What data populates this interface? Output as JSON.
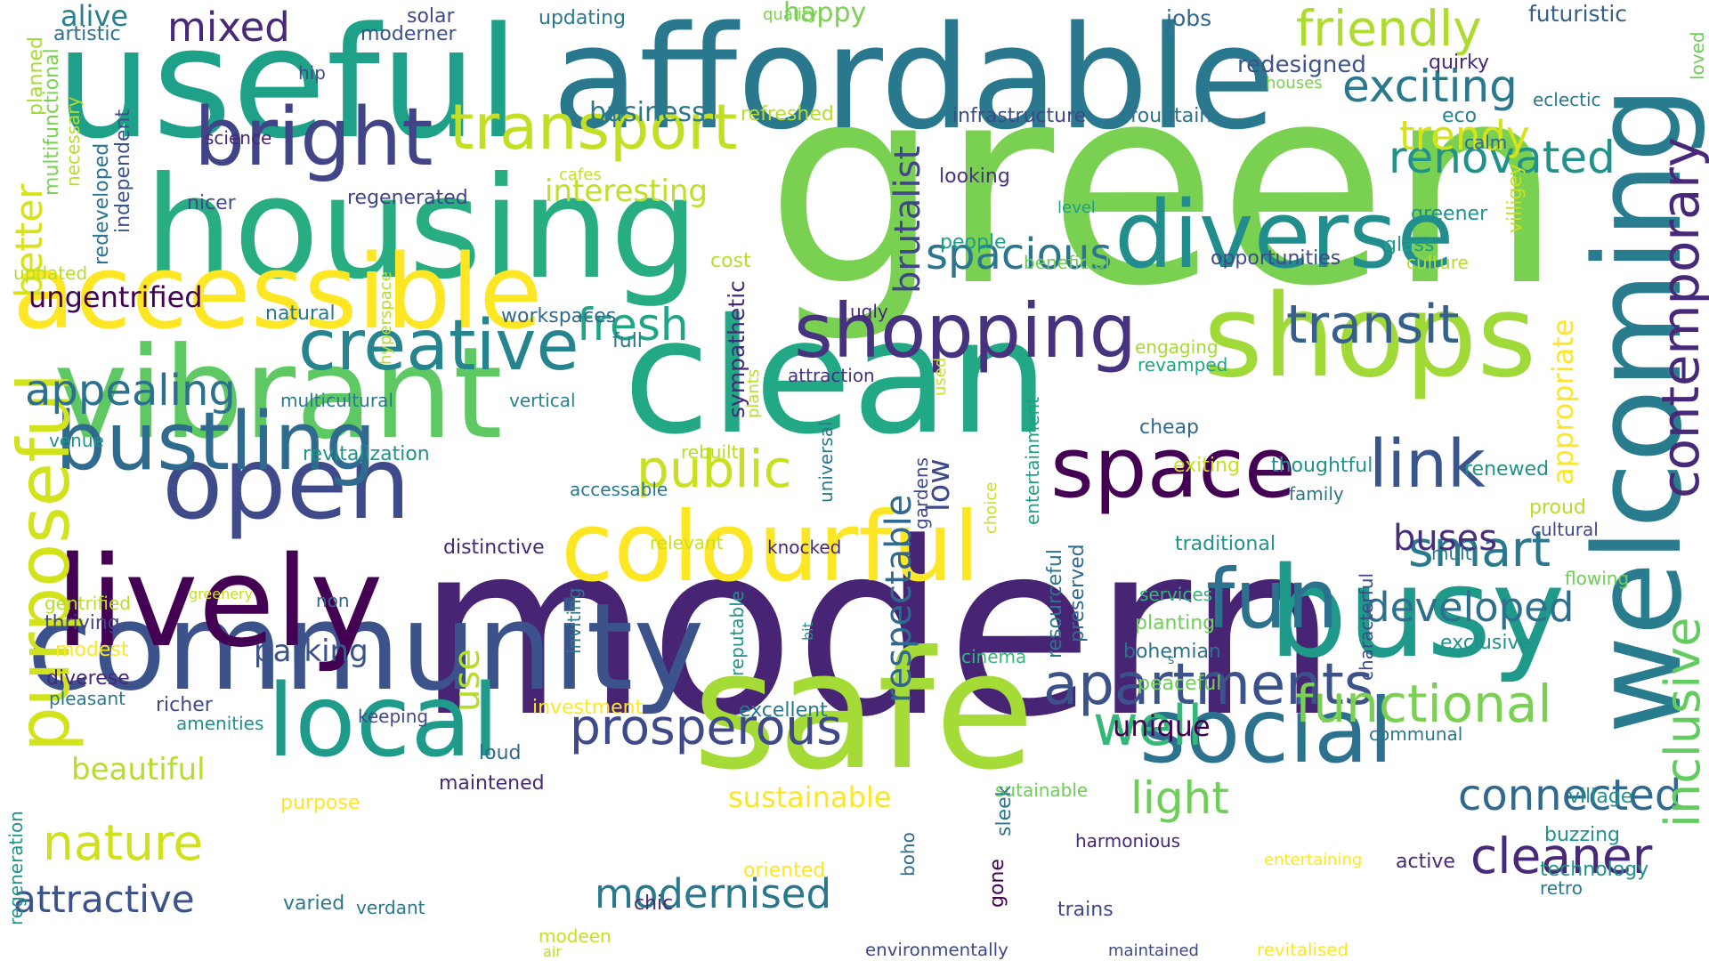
{
  "background": "#ffffff",
  "palette": [
    "#440154",
    "#482878",
    "#3e4989",
    "#31688e",
    "#26828e",
    "#1f9e89",
    "#35b779",
    "#6ece58",
    "#b5de2b",
    "#fde725"
  ],
  "words": [
    {
      "text": "modern",
      "color": "#482475",
      "orientation": "horizontal"
    },
    {
      "text": "green",
      "color": "#7ad151",
      "orientation": "horizontal"
    },
    {
      "text": "clean",
      "color": "#22a884",
      "orientation": "horizontal"
    },
    {
      "text": "safe",
      "color": "#a5db36",
      "orientation": "horizontal"
    },
    {
      "text": "welcoming",
      "color": "#287c8e",
      "orientation": "vertical"
    },
    {
      "text": "useful",
      "color": "#1fa088",
      "orientation": "horizontal"
    },
    {
      "text": "affordable",
      "color": "#2a788e",
      "orientation": "horizontal"
    },
    {
      "text": "housing",
      "color": "#27ad81",
      "orientation": "horizontal"
    },
    {
      "text": "vibrant",
      "color": "#5ec962",
      "orientation": "horizontal"
    },
    {
      "text": "community",
      "color": "#3b528b",
      "orientation": "horizontal"
    },
    {
      "text": "lively",
      "color": "#440154",
      "orientation": "horizontal"
    },
    {
      "text": "busy",
      "color": "#1f9a8a",
      "orientation": "horizontal"
    },
    {
      "text": "social",
      "color": "#2c728e",
      "orientation": "horizontal"
    },
    {
      "text": "shops",
      "color": "#a0da39",
      "orientation": "horizontal"
    },
    {
      "text": "open",
      "color": "#3e4a89",
      "orientation": "horizontal"
    },
    {
      "text": "accessible",
      "color": "#fde725",
      "orientation": "horizontal"
    },
    {
      "text": "local",
      "color": "#1e9b8a",
      "orientation": "horizontal"
    },
    {
      "text": "diverse",
      "color": "#228d8d",
      "orientation": "horizontal"
    },
    {
      "text": "bright",
      "color": "#414487",
      "orientation": "horizontal"
    },
    {
      "text": "space",
      "color": "#440154",
      "orientation": "horizontal"
    },
    {
      "text": "colourful",
      "color": "#fde725",
      "orientation": "horizontal"
    },
    {
      "text": "bustling",
      "color": "#2f6b8e",
      "orientation": "horizontal"
    },
    {
      "text": "shopping",
      "color": "#46327e",
      "orientation": "horizontal"
    },
    {
      "text": "transport",
      "color": "#c2df23",
      "orientation": "horizontal"
    },
    {
      "text": "creative",
      "color": "#25848e",
      "orientation": "horizontal"
    },
    {
      "text": "apartments",
      "color": "#3b528b",
      "orientation": "horizontal"
    },
    {
      "text": "friendly",
      "color": "#addc30",
      "orientation": "horizontal"
    },
    {
      "text": "fun",
      "color": "#2c728e",
      "orientation": "horizontal"
    },
    {
      "text": "link",
      "color": "#39568c",
      "orientation": "horizontal"
    },
    {
      "text": "transit",
      "color": "#355f8d",
      "orientation": "horizontal"
    },
    {
      "text": "prosperous",
      "color": "#3e4989",
      "orientation": "horizontal"
    },
    {
      "text": "functional",
      "color": "#7ad151",
      "orientation": "horizontal"
    },
    {
      "text": "purposeful",
      "color": "#d2e21b",
      "orientation": "vertical"
    },
    {
      "text": "contemporary",
      "color": "#482878",
      "orientation": "vertical"
    },
    {
      "text": "public",
      "color": "#c8e020",
      "orientation": "horizontal"
    },
    {
      "text": "well",
      "color": "#35b779",
      "orientation": "horizontal"
    },
    {
      "text": "cleaner",
      "color": "#482878",
      "orientation": "horizontal"
    },
    {
      "text": "exciting",
      "color": "#2a788e",
      "orientation": "horizontal"
    },
    {
      "text": "renovated",
      "color": "#21918c",
      "orientation": "horizontal"
    },
    {
      "text": "smart",
      "color": "#2a788e",
      "orientation": "horizontal"
    },
    {
      "text": "connected",
      "color": "#31688e",
      "orientation": "horizontal"
    },
    {
      "text": "nature",
      "color": "#d0e11c",
      "orientation": "horizontal"
    },
    {
      "text": "inclusive",
      "color": "#63cb5f",
      "orientation": "vertical"
    },
    {
      "text": "trendy",
      "color": "#d8e219",
      "orientation": "horizontal"
    },
    {
      "text": "fresh",
      "color": "#20a486",
      "orientation": "horizontal"
    },
    {
      "text": "spacious",
      "color": "#2b758e",
      "orientation": "horizontal"
    },
    {
      "text": "light",
      "color": "#6ece58",
      "orientation": "horizontal"
    },
    {
      "text": "developed",
      "color": "#2d708e",
      "orientation": "horizontal"
    },
    {
      "text": "appealing",
      "color": "#2d708e",
      "orientation": "horizontal"
    },
    {
      "text": "modernised",
      "color": "#2a788e",
      "orientation": "horizontal"
    },
    {
      "text": "brutalist",
      "color": "#404688",
      "orientation": "vertical"
    },
    {
      "text": "mixed",
      "color": "#482878",
      "orientation": "horizontal"
    },
    {
      "text": "attractive",
      "color": "#3b528b",
      "orientation": "horizontal"
    },
    {
      "text": "buses",
      "color": "#472d7b",
      "orientation": "horizontal"
    },
    {
      "text": "better",
      "color": "#d8e219",
      "orientation": "vertical"
    },
    {
      "text": "use",
      "color": "#b5de2b",
      "orientation": "vertical"
    },
    {
      "text": "sustainable",
      "color": "#fde725",
      "orientation": "horizontal"
    },
    {
      "text": "beautiful",
      "color": "#b5de2b",
      "orientation": "horizontal"
    },
    {
      "text": "interesting",
      "color": "#c0df25",
      "orientation": "horizontal"
    },
    {
      "text": "respectable",
      "color": "#31688e",
      "orientation": "vertical"
    },
    {
      "text": "low",
      "color": "#3e4989",
      "orientation": "vertical"
    },
    {
      "text": "ungentrified",
      "color": "#440154",
      "orientation": "horizontal"
    },
    {
      "text": "parking",
      "color": "#3b528b",
      "orientation": "horizontal"
    },
    {
      "text": "appropriate",
      "color": "#fde725",
      "orientation": "vertical"
    },
    {
      "text": "unique",
      "color": "#440154",
      "orientation": "horizontal"
    },
    {
      "text": "alive",
      "color": "#27808e",
      "orientation": "horizontal"
    },
    {
      "text": "happy",
      "color": "#7ad151",
      "orientation": "horizontal"
    },
    {
      "text": "business",
      "color": "#2a788e",
      "orientation": "horizontal"
    },
    {
      "text": "artistic",
      "color": "#2d708e",
      "orientation": "horizontal"
    },
    {
      "text": "solar",
      "color": "#3e4989",
      "orientation": "horizontal"
    },
    {
      "text": "moderner",
      "color": "#3b528b",
      "orientation": "horizontal"
    },
    {
      "text": "updating",
      "color": "#2a788e",
      "orientation": "horizontal"
    },
    {
      "text": "quality",
      "color": "#7ad151",
      "orientation": "horizontal"
    },
    {
      "text": "jobs",
      "color": "#31688e",
      "orientation": "horizontal"
    },
    {
      "text": "futuristic",
      "color": "#355f8d",
      "orientation": "horizontal"
    },
    {
      "text": "loved",
      "color": "#6ece58",
      "orientation": "vertical"
    },
    {
      "text": "planned",
      "color": "#a5db36",
      "orientation": "vertical"
    },
    {
      "text": "hip",
      "color": "#3e4989",
      "orientation": "horizontal"
    },
    {
      "text": "redesigned",
      "color": "#3b528b",
      "orientation": "horizontal"
    },
    {
      "text": "houses",
      "color": "#7ad151",
      "orientation": "horizontal"
    },
    {
      "text": "quirky",
      "color": "#482878",
      "orientation": "horizontal"
    },
    {
      "text": "eco",
      "color": "#26828e",
      "orientation": "horizontal"
    },
    {
      "text": "eclectic",
      "color": "#2a788e",
      "orientation": "horizontal"
    },
    {
      "text": "refreshed",
      "color": "#b5de2b",
      "orientation": "horizontal"
    },
    {
      "text": "infrastructure",
      "color": "#3e4989",
      "orientation": "horizontal"
    },
    {
      "text": "fountain",
      "color": "#2d708e",
      "orientation": "horizontal"
    },
    {
      "text": "science",
      "color": "#482878",
      "orientation": "horizontal"
    },
    {
      "text": "multifunctional",
      "color": "#7ad151",
      "orientation": "vertical"
    },
    {
      "text": "necessary",
      "color": "#b5de2b",
      "orientation": "vertical"
    },
    {
      "text": "cafes",
      "color": "#c8e020",
      "orientation": "horizontal"
    },
    {
      "text": "looking",
      "color": "#46327e",
      "orientation": "horizontal"
    },
    {
      "text": "calm",
      "color": "#31688e",
      "orientation": "horizontal"
    },
    {
      "text": "nicer",
      "color": "#3e4989",
      "orientation": "horizontal"
    },
    {
      "text": "regenerated",
      "color": "#414487",
      "orientation": "horizontal"
    },
    {
      "text": "villigey",
      "color": "#c8e020",
      "orientation": "vertical"
    },
    {
      "text": "greener",
      "color": "#21918c",
      "orientation": "horizontal"
    },
    {
      "text": "level",
      "color": "#1f9e89",
      "orientation": "horizontal"
    },
    {
      "text": "independent",
      "color": "#3b528b",
      "orientation": "vertical"
    },
    {
      "text": "redeveloped",
      "color": "#2c728e",
      "orientation": "vertical"
    },
    {
      "text": "glass",
      "color": "#1f9e89",
      "orientation": "horizontal"
    },
    {
      "text": "people",
      "color": "#1f9e89",
      "orientation": "horizontal"
    },
    {
      "text": "updated",
      "color": "#b5de2b",
      "orientation": "horizontal"
    },
    {
      "text": "cost",
      "color": "#b5de2b",
      "orientation": "horizontal"
    },
    {
      "text": "beneficial",
      "color": "#6ece58",
      "orientation": "horizontal"
    },
    {
      "text": "opportunities",
      "color": "#3e4989",
      "orientation": "horizontal"
    },
    {
      "text": "culture",
      "color": "#b5de2b",
      "orientation": "horizontal"
    },
    {
      "text": "hyperspace",
      "color": "#b5de2b",
      "orientation": "vertical"
    },
    {
      "text": "natural",
      "color": "#2a788e",
      "orientation": "horizontal"
    },
    {
      "text": "workspaces",
      "color": "#31688e",
      "orientation": "horizontal"
    },
    {
      "text": "ugly",
      "color": "#482878",
      "orientation": "horizontal"
    },
    {
      "text": "full",
      "color": "#2a788e",
      "orientation": "horizontal"
    },
    {
      "text": "engaging",
      "color": "#a5db36",
      "orientation": "horizontal"
    },
    {
      "text": "revamped",
      "color": "#20a486",
      "orientation": "horizontal"
    },
    {
      "text": "sympathetic",
      "color": "#482878",
      "orientation": "vertical"
    },
    {
      "text": "attraction",
      "color": "#46327e",
      "orientation": "horizontal"
    },
    {
      "text": "multicultural",
      "color": "#2a788e",
      "orientation": "horizontal"
    },
    {
      "text": "vertical",
      "color": "#26828e",
      "orientation": "horizontal"
    },
    {
      "text": "plants",
      "color": "#b5de2b",
      "orientation": "vertical"
    },
    {
      "text": "used",
      "color": "#c8e020",
      "orientation": "vertical"
    },
    {
      "text": "cheap",
      "color": "#31688e",
      "orientation": "horizontal"
    },
    {
      "text": "venue",
      "color": "#21918c",
      "orientation": "horizontal"
    },
    {
      "text": "revitalization",
      "color": "#21918c",
      "orientation": "horizontal"
    },
    {
      "text": "rebuilt",
      "color": "#b5de2b",
      "orientation": "horizontal"
    },
    {
      "text": "universal",
      "color": "#2a788e",
      "orientation": "vertical"
    },
    {
      "text": "entertainment",
      "color": "#1f9e89",
      "orientation": "vertical"
    },
    {
      "text": "exiting",
      "color": "#c8e020",
      "orientation": "horizontal"
    },
    {
      "text": "thoughtful",
      "color": "#21918c",
      "orientation": "horizontal"
    },
    {
      "text": "renewed",
      "color": "#21918c",
      "orientation": "horizontal"
    },
    {
      "text": "accessable",
      "color": "#2a788e",
      "orientation": "horizontal"
    },
    {
      "text": "family",
      "color": "#2a788e",
      "orientation": "horizontal"
    },
    {
      "text": "proud",
      "color": "#b5de2b",
      "orientation": "horizontal"
    },
    {
      "text": "cultural",
      "color": "#3e4989",
      "orientation": "horizontal"
    },
    {
      "text": "distinctive",
      "color": "#482878",
      "orientation": "horizontal"
    },
    {
      "text": "relevant",
      "color": "#c8e020",
      "orientation": "horizontal"
    },
    {
      "text": "knocked",
      "color": "#482878",
      "orientation": "horizontal"
    },
    {
      "text": "gardens",
      "color": "#3e4989",
      "orientation": "vertical"
    },
    {
      "text": "choice",
      "color": "#c8e020",
      "orientation": "vertical"
    },
    {
      "text": "resourceful",
      "color": "#2a788e",
      "orientation": "vertical"
    },
    {
      "text": "preserved",
      "color": "#31688e",
      "orientation": "vertical"
    },
    {
      "text": "traditional",
      "color": "#21918c",
      "orientation": "horizontal"
    },
    {
      "text": "multi",
      "color": "#2a788e",
      "orientation": "horizontal"
    },
    {
      "text": "flowing",
      "color": "#6ece58",
      "orientation": "horizontal"
    },
    {
      "text": "gentrified",
      "color": "#b5de2b",
      "orientation": "horizontal"
    },
    {
      "text": "greenery",
      "color": "#c8e020",
      "orientation": "horizontal"
    },
    {
      "text": "non",
      "color": "#31688e",
      "orientation": "horizontal"
    },
    {
      "text": "services",
      "color": "#35b779",
      "orientation": "horizontal"
    },
    {
      "text": "characterful",
      "color": "#3e4989",
      "orientation": "vertical"
    },
    {
      "text": "thriving",
      "color": "#3e4989",
      "orientation": "horizontal"
    },
    {
      "text": "inviting",
      "color": "#2a788e",
      "orientation": "vertical"
    },
    {
      "text": "planting",
      "color": "#6ece58",
      "orientation": "horizontal"
    },
    {
      "text": "modest",
      "color": "#fde725",
      "orientation": "horizontal"
    },
    {
      "text": "bit",
      "color": "#21918c",
      "orientation": "vertical"
    },
    {
      "text": "reputable",
      "color": "#21918c",
      "orientation": "vertical"
    },
    {
      "text": "cinema",
      "color": "#35b779",
      "orientation": "horizontal"
    },
    {
      "text": "bohemian",
      "color": "#2d708e",
      "orientation": "horizontal"
    },
    {
      "text": "exclusive",
      "color": "#21918c",
      "orientation": "horizontal"
    },
    {
      "text": "diverese",
      "color": "#482878",
      "orientation": "horizontal"
    },
    {
      "text": "s",
      "color": "#2a788e",
      "orientation": "horizontal"
    },
    {
      "text": "peaceful",
      "color": "#6ece58",
      "orientation": "horizontal"
    },
    {
      "text": "pleasant",
      "color": "#2a788e",
      "orientation": "horizontal"
    },
    {
      "text": "richer",
      "color": "#3e4989",
      "orientation": "horizontal"
    },
    {
      "text": "amenities",
      "color": "#21918c",
      "orientation": "horizontal"
    },
    {
      "text": "investment",
      "color": "#fde725",
      "orientation": "horizontal"
    },
    {
      "text": "excellent",
      "color": "#2a788e",
      "orientation": "horizontal"
    },
    {
      "text": "keeping",
      "color": "#3e4989",
      "orientation": "horizontal"
    },
    {
      "text": "communal",
      "color": "#2a788e",
      "orientation": "horizontal"
    },
    {
      "text": "loud",
      "color": "#31688e",
      "orientation": "horizontal"
    },
    {
      "text": "regeneration",
      "color": "#21918c",
      "orientation": "vertical"
    },
    {
      "text": "maintened",
      "color": "#482878",
      "orientation": "horizontal"
    },
    {
      "text": "sutainable",
      "color": "#6ece58",
      "orientation": "horizontal"
    },
    {
      "text": "village",
      "color": "#21918c",
      "orientation": "horizontal"
    },
    {
      "text": "purpose",
      "color": "#fde725",
      "orientation": "horizontal"
    },
    {
      "text": "buzzing",
      "color": "#21918c",
      "orientation": "horizontal"
    },
    {
      "text": "harmonious",
      "color": "#482878",
      "orientation": "horizontal"
    },
    {
      "text": "sleek",
      "color": "#2a788e",
      "orientation": "vertical"
    },
    {
      "text": "entertaining",
      "color": "#fde725",
      "orientation": "horizontal"
    },
    {
      "text": "active",
      "color": "#482878",
      "orientation": "horizontal"
    },
    {
      "text": "technology",
      "color": "#21918c",
      "orientation": "horizontal"
    },
    {
      "text": "oriented",
      "color": "#fde725",
      "orientation": "horizontal"
    },
    {
      "text": "retro",
      "color": "#2a788e",
      "orientation": "horizontal"
    },
    {
      "text": "boho",
      "color": "#31688e",
      "orientation": "vertical"
    },
    {
      "text": "varied",
      "color": "#2a788e",
      "orientation": "horizontal"
    },
    {
      "text": "verdant",
      "color": "#2a788e",
      "orientation": "horizontal"
    },
    {
      "text": "chic",
      "color": "#482878",
      "orientation": "horizontal"
    },
    {
      "text": "gone",
      "color": "#440154",
      "orientation": "vertical"
    },
    {
      "text": "trains",
      "color": "#3e4989",
      "orientation": "horizontal"
    },
    {
      "text": "modeen",
      "color": "#c8e020",
      "orientation": "horizontal"
    },
    {
      "text": "air",
      "color": "#b5de2b",
      "orientation": "horizontal"
    },
    {
      "text": "environmentally",
      "color": "#3e4989",
      "orientation": "horizontal"
    },
    {
      "text": "maintained",
      "color": "#3e4989",
      "orientation": "horizontal"
    },
    {
      "text": "revitalised",
      "color": "#fde725",
      "orientation": "horizontal"
    }
  ]
}
